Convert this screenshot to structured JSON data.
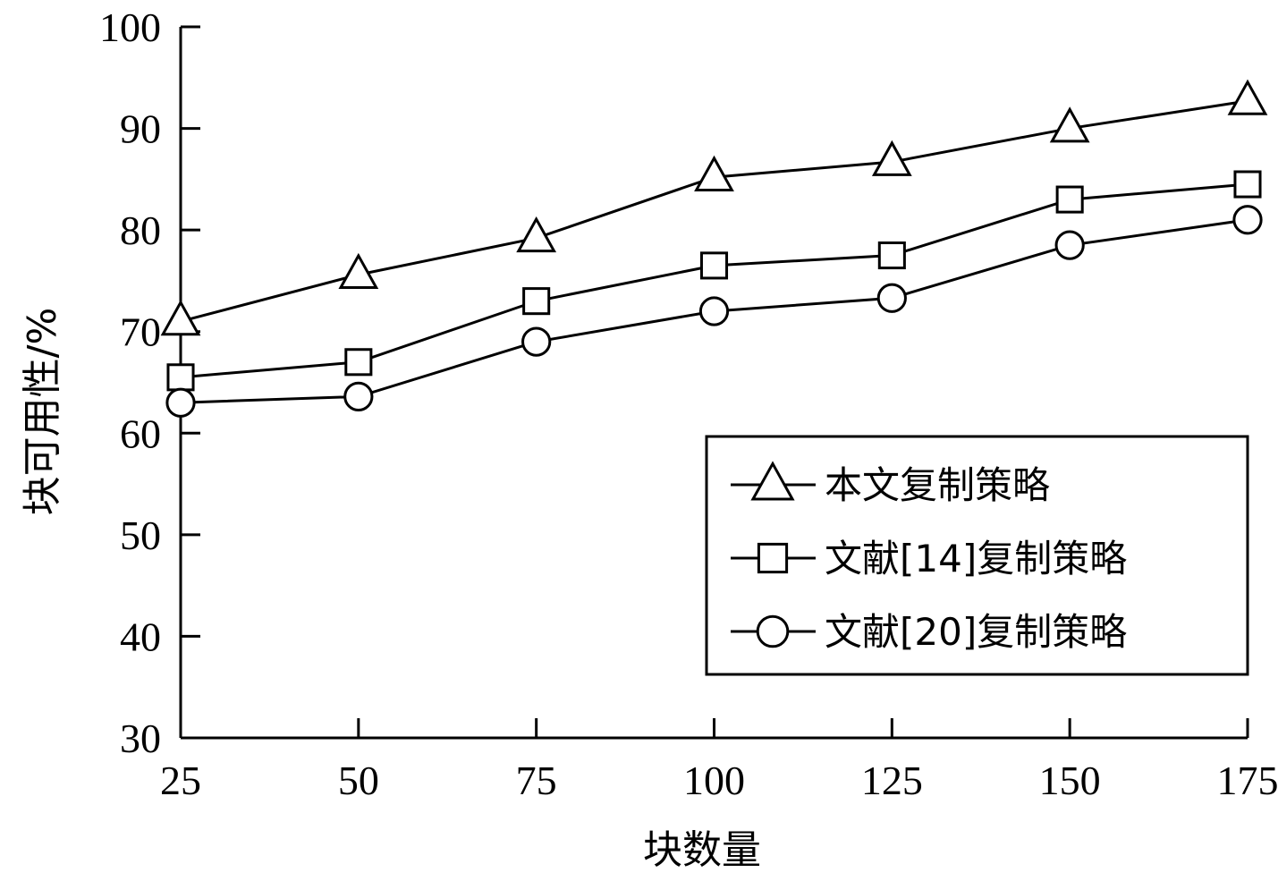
{
  "chart_data": {
    "type": "line",
    "xlabel": "块数量",
    "ylabel": "块可用性/%",
    "x": [
      25,
      50,
      75,
      100,
      125,
      150,
      175
    ],
    "xticks": [
      "25",
      "50",
      "75",
      "100",
      "125",
      "150",
      "175"
    ],
    "yticks": [
      "30",
      "40",
      "50",
      "60",
      "70",
      "80",
      "90",
      "100"
    ],
    "xlim": [
      25,
      175
    ],
    "ylim": [
      30,
      100
    ],
    "grid": false,
    "legend_position": "lower-right",
    "series": [
      {
        "name": "本文复制策略",
        "marker": "triangle",
        "values": [
          71,
          75.6,
          79.2,
          85.2,
          86.7,
          90,
          92.7
        ]
      },
      {
        "name": "文献[14]复制策略",
        "marker": "square",
        "values": [
          65.5,
          67,
          73,
          76.5,
          77.5,
          83,
          84.5
        ]
      },
      {
        "name": "文献[20]复制策略",
        "marker": "circle",
        "values": [
          63,
          63.6,
          69,
          72,
          73.3,
          78.5,
          81
        ]
      }
    ],
    "colors": {
      "line": "#000000",
      "background": "#ffffff"
    }
  }
}
